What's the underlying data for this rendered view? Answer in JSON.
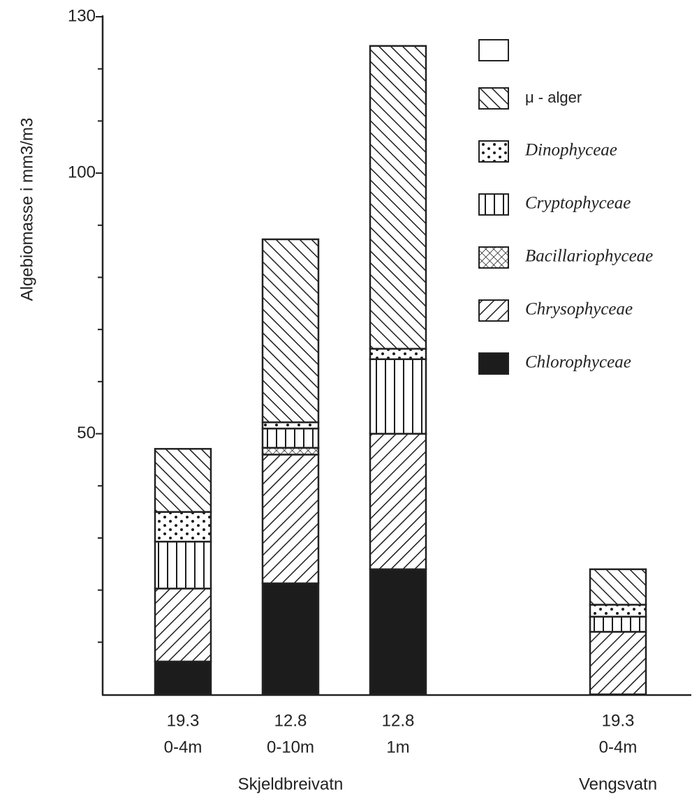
{
  "chart_data": {
    "type": "stacked-bar",
    "ylabel": "Algebiomasse i mm3/m3",
    "ylim": [
      0,
      130
    ],
    "yticks": [
      50,
      100,
      130
    ],
    "yminorticks": [
      10,
      20,
      30,
      40,
      60,
      70,
      80,
      90,
      110,
      120
    ],
    "categories": [
      [
        "19.3",
        "0-4m"
      ],
      [
        "12.8",
        "0-10m"
      ],
      [
        "12.8",
        "1m"
      ],
      [
        "19.3",
        "0-4m"
      ]
    ],
    "groups": [
      {
        "label": "Skjeldbreivatn"
      },
      {
        "label": "Vengsvatn"
      }
    ],
    "series": [
      {
        "name": "Chlorophyceae",
        "pattern": "solid",
        "color": "#1c1c1c",
        "values": [
          6.3,
          21.3,
          24,
          0
        ]
      },
      {
        "name": "Chrysophyceae",
        "pattern": "diagonal-up",
        "color": "#1c1c1c",
        "values": [
          14,
          24.7,
          26,
          12
        ]
      },
      {
        "name": "Bacillariophyceae",
        "pattern": "crosshatch",
        "color": "#1c1c1c",
        "values": [
          0,
          1.3,
          0,
          0
        ]
      },
      {
        "name": "Cryptophyceae",
        "pattern": "vertical",
        "color": "#1c1c1c",
        "values": [
          9,
          3.7,
          14.3,
          2.9
        ]
      },
      {
        "name": "Dinophyceae",
        "pattern": "dots",
        "color": "#1c1c1c",
        "values": [
          5.7,
          1.2,
          2,
          2.3
        ]
      },
      {
        "name": "μ - alger",
        "pattern": "diagonal-down",
        "color": "#1c1c1c",
        "values": [
          12.1,
          35.1,
          58.1,
          6.8
        ]
      }
    ],
    "legend": "upper right"
  }
}
